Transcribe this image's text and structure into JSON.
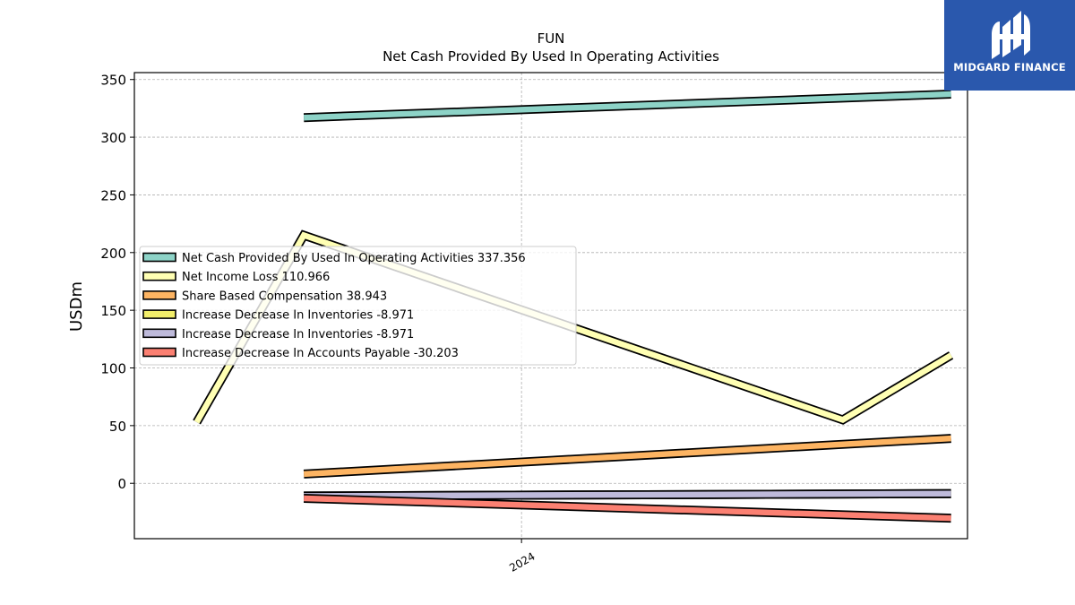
{
  "branding": {
    "logo_text": "MIDGARD FINANCE",
    "background": "#2a58ad"
  },
  "chart_data": {
    "type": "line",
    "title": "FUN",
    "subtitle": "Net Cash Provided By Used In Operating Activities",
    "xlabel": "",
    "ylabel": "USDm",
    "ylim": [
      -48,
      356
    ],
    "yticks": [
      0,
      50,
      100,
      150,
      200,
      250,
      300,
      350
    ],
    "xlim": [
      "2023-02-06",
      "2025-01-14"
    ],
    "xticks": [
      {
        "date": "2024-01-01",
        "label": "2024"
      }
    ],
    "grid": true,
    "legend_position": "center-left",
    "series": [
      {
        "name": "Net Cash Provided By Used In Operating Activities",
        "legend_value": "337.356",
        "color": "#8dd3c7",
        "points": [
          {
            "x": "2023-06-30",
            "y": 317
          },
          {
            "x": "2024-12-31",
            "y": 337.356
          }
        ]
      },
      {
        "name": "Net Income Loss",
        "legend_value": "110.966",
        "color": "#ffffb3",
        "points": [
          {
            "x": "2023-03-31",
            "y": 53
          },
          {
            "x": "2023-06-30",
            "y": 215
          },
          {
            "x": "2024-09-30",
            "y": 55
          },
          {
            "x": "2024-12-31",
            "y": 110.966
          }
        ]
      },
      {
        "name": "Share Based Compensation",
        "legend_value": "38.943",
        "color": "#fdb462",
        "points": [
          {
            "x": "2023-06-30",
            "y": 8
          },
          {
            "x": "2024-12-31",
            "y": 38.943
          }
        ]
      },
      {
        "name": "Increase Decrease In Inventories",
        "legend_value": "-8.971",
        "color": "#f2ee6a",
        "points": [
          {
            "x": "2023-06-30",
            "y": -11
          },
          {
            "x": "2024-12-31",
            "y": -8.971
          }
        ]
      },
      {
        "name": "Increase Decrease In Inventories",
        "legend_value": "-8.971",
        "color": "#bebada",
        "points": [
          {
            "x": "2023-06-30",
            "y": -11
          },
          {
            "x": "2024-12-31",
            "y": -8.971
          }
        ]
      },
      {
        "name": "Increase Decrease In Accounts Payable",
        "legend_value": "-30.203",
        "color": "#fb8072",
        "points": [
          {
            "x": "2023-06-30",
            "y": -13
          },
          {
            "x": "2024-12-31",
            "y": -30.203
          }
        ]
      }
    ]
  }
}
